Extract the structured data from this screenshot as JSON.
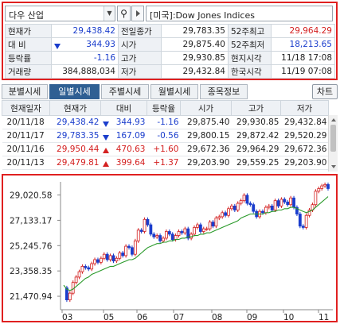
{
  "search": {
    "stock_name": "다우 산업",
    "index_name": "[미국]:Dow Jones Indices"
  },
  "quote": {
    "rows": [
      {
        "l1": "현재가",
        "v1": "29,438.42",
        "l2": "전일종가",
        "v2": "29,783.35",
        "l3": "52주최고",
        "v3": "29,964.29"
      },
      {
        "l1": "대  비",
        "v1": "344.93",
        "l2": "시가",
        "v2": "29,875.40",
        "l3": "52주최저",
        "v3": "18,213.65"
      },
      {
        "l1": "등락률",
        "v1": "-1.16",
        "l2": "고가",
        "v2": "29,930.85",
        "l3": "현지시각",
        "v3": "11/18 17:08"
      },
      {
        "l1": "거래량",
        "v1": "384,888,034",
        "l2": "저가",
        "v2": "29,432.84",
        "l3": "한국시각",
        "v3": "11/19 07:08"
      }
    ]
  },
  "tabs": {
    "items": [
      "분별시세",
      "일별시세",
      "주별시세",
      "월별시세",
      "종목정보"
    ],
    "active": 1,
    "chart_button": "차트"
  },
  "daily": {
    "headers": [
      "현재일자",
      "현재가",
      "대비",
      "등락율",
      "시가",
      "고가",
      "저가"
    ],
    "rows": [
      {
        "date": "20/11/18",
        "price": "29,438.42",
        "dir": "down",
        "change": "344.93",
        "rate": "-1.16",
        "open": "29,875.40",
        "high": "29,930.85",
        "low": "29,432.84"
      },
      {
        "date": "20/11/17",
        "price": "29,783.35",
        "dir": "down",
        "change": "167.09",
        "rate": "-0.56",
        "open": "29,800.15",
        "high": "29,872.42",
        "low": "29,520.29"
      },
      {
        "date": "20/11/16",
        "price": "29,950.44",
        "dir": "up",
        "change": "470.63",
        "rate": "+1.60",
        "open": "29,672.36",
        "high": "29,964.29",
        "low": "29,672.36"
      },
      {
        "date": "20/11/13",
        "price": "29,479.81",
        "dir": "up",
        "change": "399.64",
        "rate": "+1.37",
        "open": "29,203.90",
        "high": "29,559.25",
        "low": "29,203.90"
      }
    ]
  },
  "chart_data": {
    "type": "line",
    "y_ticks": [
      "29,020.58",
      "27,133.17",
      "25,245.76",
      "23,358.35",
      "21,470.94"
    ],
    "x_ticks": [
      "03",
      "05",
      "06",
      "07",
      "08",
      "09",
      "10",
      "11"
    ],
    "ylim": [
      20527,
      30000
    ],
    "series": [
      {
        "values": [
          22100,
          21200,
          21700,
          22500,
          22900,
          23300,
          23700,
          23600,
          23500,
          23900,
          24200,
          24000,
          24300,
          24600,
          24200,
          24500,
          24100,
          24300,
          24700,
          24500,
          25200,
          25100,
          24600,
          25600,
          26400,
          26300,
          27200,
          26800,
          26100,
          25900,
          26000,
          25600,
          25800,
          26300,
          26100,
          25700,
          26000,
          26300,
          26200,
          26500,
          25800,
          26100,
          26600,
          26800,
          26300,
          26500,
          26500,
          27000,
          26700,
          27300,
          27400,
          27700,
          27500,
          28000,
          28200,
          27900,
          28400,
          28600,
          29000,
          28400,
          28300,
          27800,
          27400,
          27800,
          27700,
          28100,
          28200,
          27900,
          28600,
          28200,
          28700,
          28500,
          28300,
          28800,
          28100,
          27600,
          26700,
          26600,
          27500,
          27900,
          28300,
          29300,
          29500,
          29700,
          29800,
          29500
        ]
      },
      {
        "values": [
          22300,
          22000,
          21900,
          22000,
          22200,
          22400,
          22600,
          22800,
          22900,
          23100,
          23200,
          23300,
          23400,
          23500,
          23600,
          23700,
          23700,
          23800,
          23900,
          24000,
          24100,
          24200,
          24200,
          24300,
          24500,
          24700,
          24900,
          25100,
          25200,
          25300,
          25400,
          25400,
          25500,
          25500,
          25600,
          25600,
          25700,
          25700,
          25800,
          25800,
          25900,
          25900,
          26000,
          26000,
          26100,
          26100,
          26200,
          26200,
          26300,
          26400,
          26500,
          26600,
          26700,
          26800,
          26900,
          27000,
          27100,
          27300,
          27400,
          27500,
          27600,
          27600,
          27600,
          27600,
          27600,
          27700,
          27700,
          27800,
          27800,
          27900,
          27900,
          28000,
          28000,
          28100,
          28100,
          28000,
          27900,
          27800,
          27700,
          27800,
          27900,
          28100,
          28300,
          28500,
          28700,
          28900
        ]
      }
    ],
    "colors": {
      "up": "#d42020",
      "down": "#1a3dcc",
      "ma": "#2a9a2a"
    }
  }
}
